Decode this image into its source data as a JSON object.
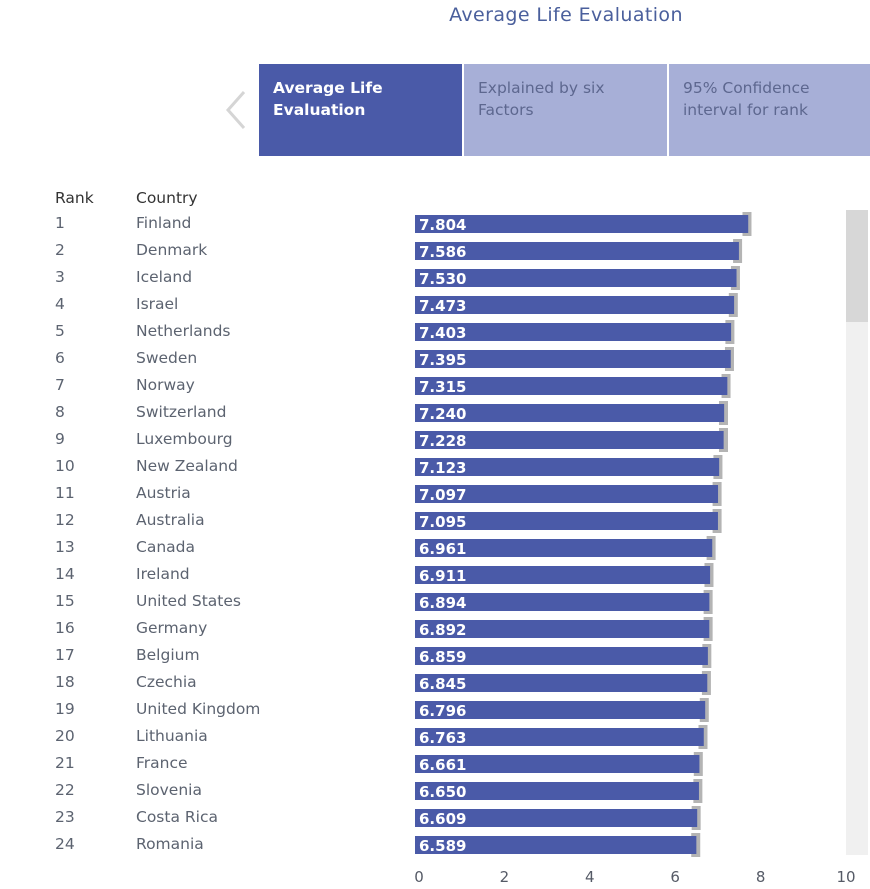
{
  "title": "Average Life Evaluation",
  "tabs": [
    {
      "label": "Average Life Evaluation",
      "active": true
    },
    {
      "label": "Explained by six Factors",
      "active": false
    },
    {
      "label": "95% Confidence interval for rank",
      "active": false
    }
  ],
  "columns": {
    "rank": "Rank",
    "country": "Country"
  },
  "colors": {
    "bar": "#4a5aa8",
    "ci": "#b4b4b4",
    "active_tab": "#4a5aa8",
    "inactive_tab": "#a7afd7",
    "title": "#4a5f9c"
  },
  "rows": [
    {
      "rank": "1",
      "country": "Finland",
      "value": "7.804"
    },
    {
      "rank": "2",
      "country": "Denmark",
      "value": "7.586"
    },
    {
      "rank": "3",
      "country": "Iceland",
      "value": "7.530"
    },
    {
      "rank": "4",
      "country": "Israel",
      "value": "7.473"
    },
    {
      "rank": "5",
      "country": "Netherlands",
      "value": "7.403"
    },
    {
      "rank": "6",
      "country": "Sweden",
      "value": "7.395"
    },
    {
      "rank": "7",
      "country": "Norway",
      "value": "7.315"
    },
    {
      "rank": "8",
      "country": "Switzerland",
      "value": "7.240"
    },
    {
      "rank": "9",
      "country": "Luxembourg",
      "value": "7.228"
    },
    {
      "rank": "10",
      "country": "New Zealand",
      "value": "7.123"
    },
    {
      "rank": "11",
      "country": "Austria",
      "value": "7.097"
    },
    {
      "rank": "12",
      "country": "Australia",
      "value": "7.095"
    },
    {
      "rank": "13",
      "country": "Canada",
      "value": "6.961"
    },
    {
      "rank": "14",
      "country": "Ireland",
      "value": "6.911"
    },
    {
      "rank": "15",
      "country": "United States",
      "value": "6.894"
    },
    {
      "rank": "16",
      "country": "Germany",
      "value": "6.892"
    },
    {
      "rank": "17",
      "country": "Belgium",
      "value": "6.859"
    },
    {
      "rank": "18",
      "country": "Czechia",
      "value": "6.845"
    },
    {
      "rank": "19",
      "country": "United Kingdom",
      "value": "6.796"
    },
    {
      "rank": "20",
      "country": "Lithuania",
      "value": "6.763"
    },
    {
      "rank": "21",
      "country": "France",
      "value": "6.661"
    },
    {
      "rank": "22",
      "country": "Slovenia",
      "value": "6.650"
    },
    {
      "rank": "23",
      "country": "Costa Rica",
      "value": "6.609"
    },
    {
      "rank": "24",
      "country": "Romania",
      "value": "6.589"
    }
  ],
  "chart_data": {
    "type": "bar",
    "orientation": "horizontal",
    "title": "Average Life Evaluation",
    "categories": [
      "Finland",
      "Denmark",
      "Iceland",
      "Israel",
      "Netherlands",
      "Sweden",
      "Norway",
      "Switzerland",
      "Luxembourg",
      "New Zealand",
      "Austria",
      "Australia",
      "Canada",
      "Ireland",
      "United States",
      "Germany",
      "Belgium",
      "Czechia",
      "United Kingdom",
      "Lithuania",
      "France",
      "Slovenia",
      "Costa Rica",
      "Romania"
    ],
    "values": [
      7.804,
      7.586,
      7.53,
      7.473,
      7.403,
      7.395,
      7.315,
      7.24,
      7.228,
      7.123,
      7.097,
      7.095,
      6.961,
      6.911,
      6.894,
      6.892,
      6.859,
      6.845,
      6.796,
      6.763,
      6.661,
      6.65,
      6.609,
      6.589
    ],
    "ci_upper": [
      7.88,
      7.66,
      7.61,
      7.56,
      7.48,
      7.47,
      7.39,
      7.33,
      7.33,
      7.2,
      7.18,
      7.18,
      7.04,
      6.99,
      6.97,
      6.97,
      6.94,
      6.93,
      6.88,
      6.85,
      6.74,
      6.73,
      6.69,
      6.68
    ],
    "x_ticks": [
      "0",
      "2",
      "4",
      "6",
      "8",
      "10"
    ],
    "xlim": [
      0,
      10
    ],
    "xlabel": "",
    "ylabel": ""
  }
}
